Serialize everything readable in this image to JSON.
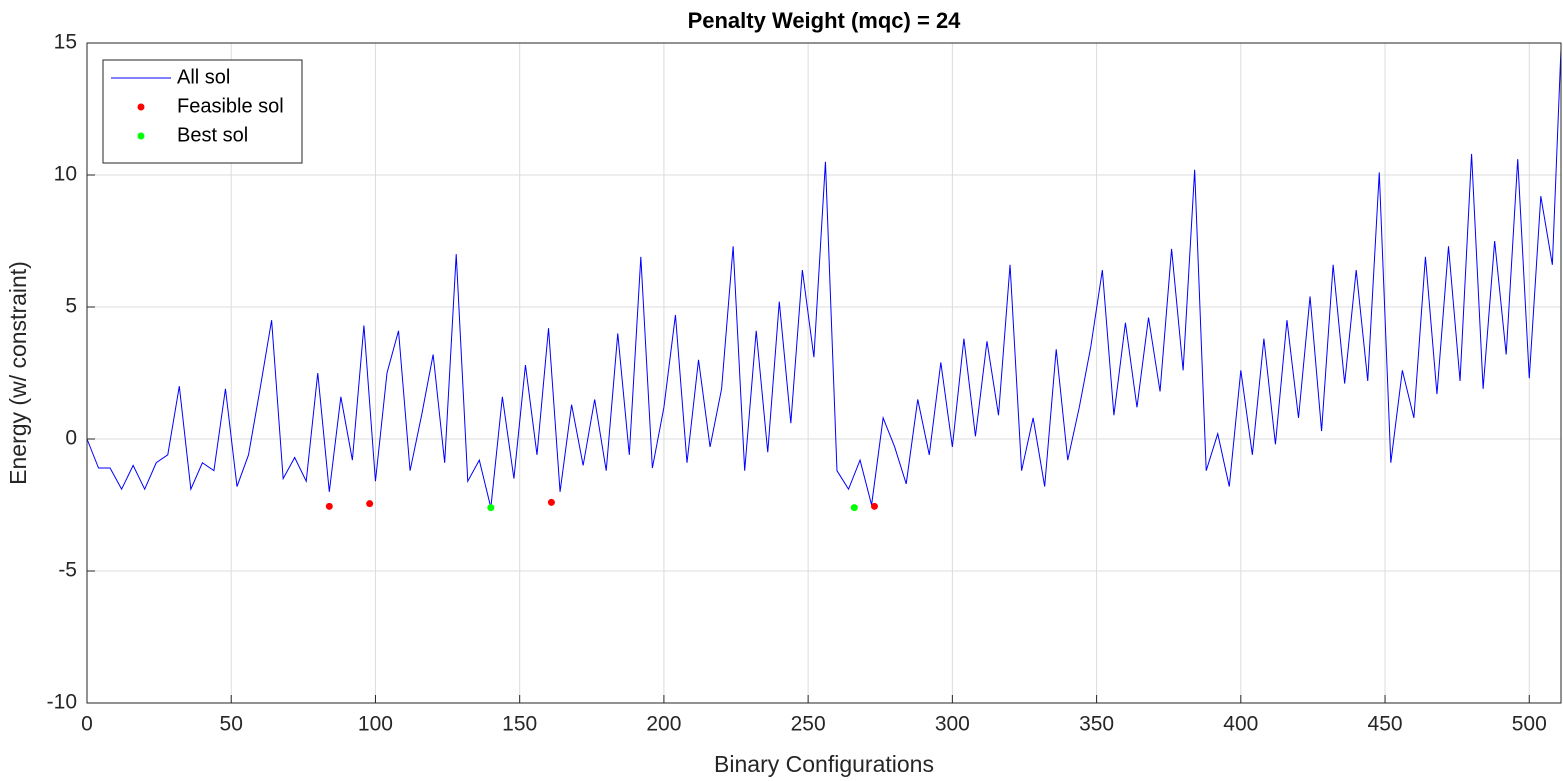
{
  "chart_data": {
    "type": "line",
    "title": "Penalty Weight (mqc) = 24",
    "xlabel": "Binary Configurations",
    "ylabel": "Energy (w/ constraint)",
    "xlim": [
      0,
      511
    ],
    "xticks": [
      0,
      50,
      100,
      150,
      200,
      250,
      300,
      350,
      400,
      450,
      500
    ],
    "ylim": [
      -10,
      15
    ],
    "yticks": [
      -10,
      -5,
      0,
      5,
      10,
      15
    ],
    "grid": true,
    "legend": "upper-left",
    "series": [
      {
        "name": "All sol",
        "color": "#0000ff",
        "marker": "none",
        "x": [
          0,
          4,
          8,
          12,
          16,
          20,
          24,
          28,
          32,
          36,
          40,
          44,
          48,
          52,
          56,
          60,
          64,
          68,
          72,
          76,
          80,
          84,
          88,
          92,
          96,
          100,
          104,
          108,
          112,
          116,
          120,
          124,
          128,
          132,
          136,
          140,
          144,
          148,
          152,
          156,
          160,
          164,
          168,
          172,
          176,
          180,
          184,
          188,
          192,
          196,
          200,
          204,
          208,
          212,
          216,
          220,
          224,
          228,
          232,
          236,
          240,
          244,
          248,
          252,
          256,
          260,
          264,
          268,
          272,
          276,
          280,
          284,
          288,
          292,
          296,
          300,
          304,
          308,
          312,
          316,
          320,
          324,
          328,
          332,
          336,
          340,
          344,
          348,
          352,
          356,
          360,
          364,
          368,
          372,
          376,
          380,
          384,
          388,
          392,
          396,
          400,
          404,
          408,
          412,
          416,
          420,
          424,
          428,
          432,
          436,
          440,
          444,
          448,
          452,
          456,
          460,
          464,
          468,
          472,
          476,
          480,
          484,
          488,
          492,
          496,
          500,
          504,
          508,
          511
        ],
        "values": [
          0,
          -1.1,
          -1.1,
          -1.9,
          -1,
          -1.9,
          -0.9,
          -0.6,
          2,
          -1.9,
          -0.9,
          -1.2,
          1.9,
          -1.8,
          -0.6,
          1.9,
          4.5,
          -1.5,
          -0.7,
          -1.6,
          2.5,
          -2,
          1.6,
          -0.8,
          4.3,
          -1.6,
          2.5,
          4.1,
          -1.2,
          0.9,
          3.2,
          -0.9,
          7,
          -1.6,
          -0.8,
          -2.6,
          1.6,
          -1.5,
          2.8,
          -0.6,
          4.2,
          -2,
          1.3,
          -1,
          1.5,
          -1.2,
          4,
          -0.6,
          6.9,
          -1.1,
          1.2,
          4.7,
          -0.9,
          3,
          -0.3,
          1.9,
          7.3,
          -1.2,
          4.1,
          -0.5,
          5.2,
          0.6,
          6.4,
          3.1,
          10.5,
          -1.2,
          -1.9,
          -0.8,
          -2.5,
          0.8,
          -0.3,
          -1.7,
          1.5,
          -0.6,
          2.9,
          -0.3,
          3.8,
          0.1,
          3.7,
          0.9,
          6.6,
          -1.2,
          0.8,
          -1.8,
          3.4,
          -0.8,
          1.2,
          3.5,
          6.4,
          0.9,
          4.4,
          1.2,
          4.6,
          1.8,
          7.2,
          2.6,
          10.2,
          -1.2,
          0.2,
          -1.8,
          2.6,
          -0.6,
          3.8,
          -0.2,
          4.5,
          0.8,
          5.4,
          0.3,
          6.6,
          2.1,
          6.4,
          2.2,
          10.1,
          -0.9,
          2.6,
          0.8,
          6.9,
          1.7,
          7.3,
          2.2,
          10.8,
          1.9,
          7.5,
          3.2,
          10.6,
          2.3,
          9.2,
          6.6,
          14.8
        ]
      },
      {
        "name": "Feasible sol",
        "color": "#ff0000",
        "marker": "dot",
        "x": [
          84,
          98,
          161,
          273
        ],
        "values": [
          -2.55,
          -2.45,
          -2.4,
          -2.55
        ]
      },
      {
        "name": "Best sol",
        "color": "#00ff00",
        "marker": "dot",
        "x": [
          140,
          266
        ],
        "values": [
          -2.6,
          -2.6
        ]
      }
    ]
  }
}
